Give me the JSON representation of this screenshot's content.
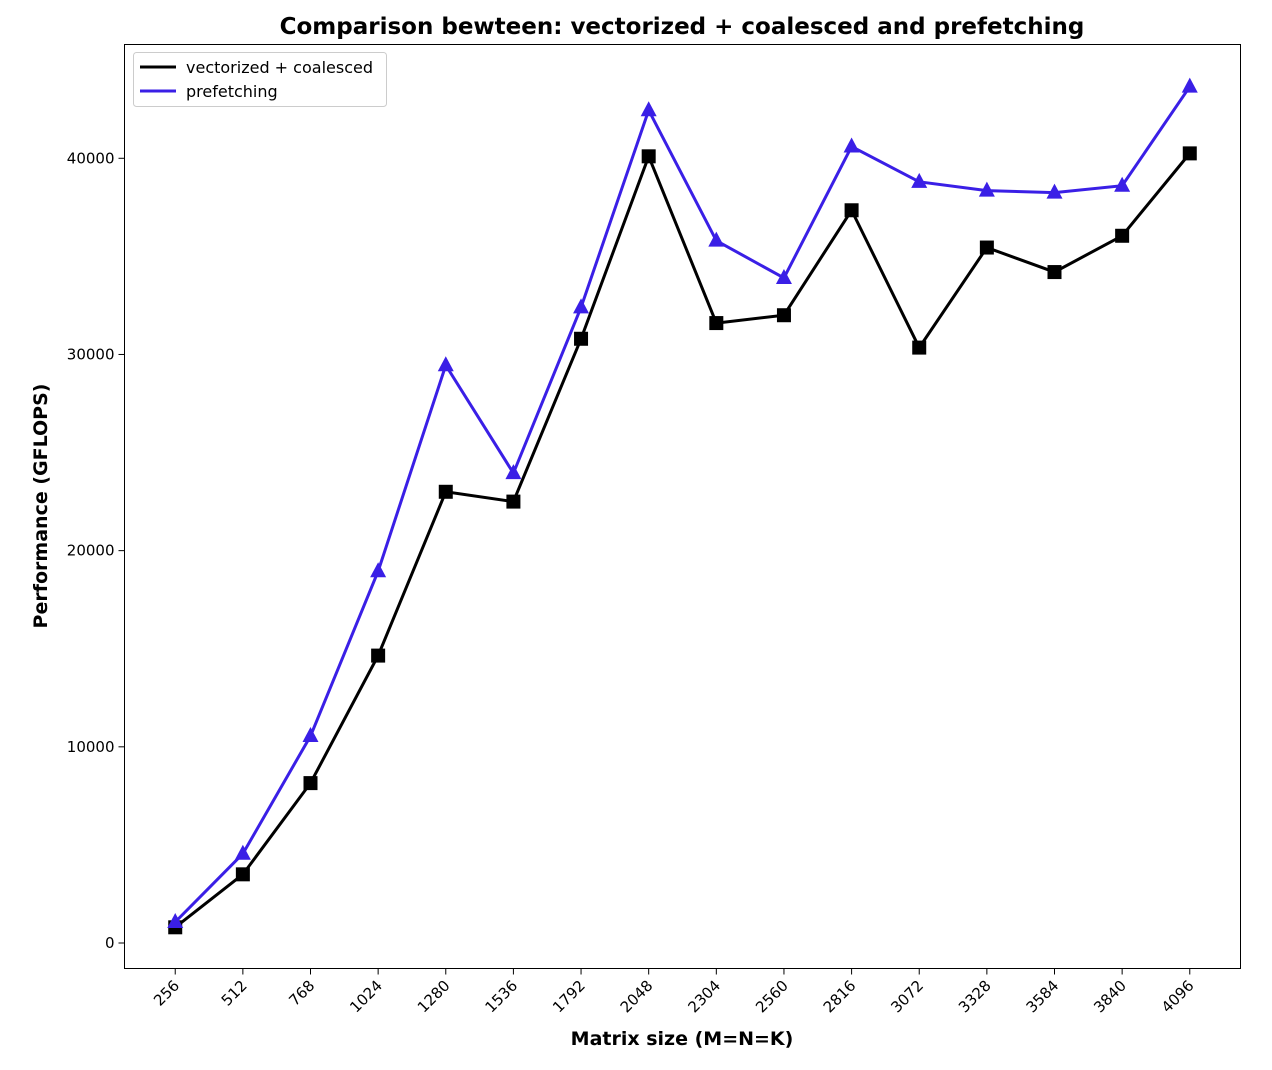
{
  "chart_data": {
    "type": "line",
    "title": "Comparison bewteen: vectorized + coalesced and prefetching",
    "xlabel": "Matrix size (M=N=K)",
    "ylabel": "Performance (GFLOPS)",
    "categories": [
      "256",
      "512",
      "768",
      "1024",
      "1280",
      "1536",
      "1792",
      "2048",
      "2304",
      "2560",
      "2816",
      "3072",
      "3328",
      "3584",
      "3840",
      "4096"
    ],
    "yticks": [
      0,
      10000,
      20000,
      30000,
      40000
    ],
    "ylim": [
      -1300,
      45800
    ],
    "grid": false,
    "legend_position": "top-left",
    "series": [
      {
        "name": "vectorized + coalesced",
        "color": "#000000",
        "marker": "square",
        "values": [
          800,
          3500,
          8150,
          14650,
          23000,
          22500,
          30800,
          40100,
          31600,
          32000,
          37350,
          30350,
          35450,
          34200,
          36050,
          40250
        ]
      },
      {
        "name": "prefetching",
        "color": "#3a1fe6",
        "marker": "triangle",
        "values": [
          1070,
          4550,
          10550,
          18950,
          29450,
          23950,
          32400,
          42450,
          35800,
          33900,
          40600,
          38800,
          38350,
          38250,
          38600,
          43650
        ]
      }
    ]
  }
}
